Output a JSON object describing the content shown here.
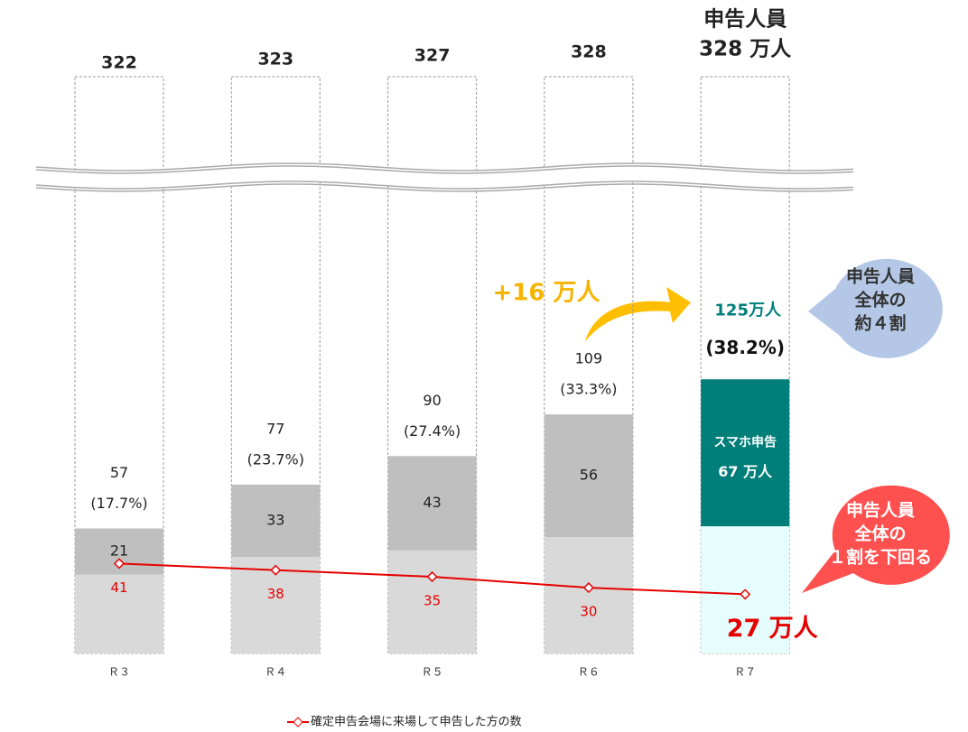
{
  "chart_data": {
    "type": "bar",
    "categories": [
      "Ｒ３",
      "Ｒ４",
      "Ｒ５",
      "Ｒ６",
      "Ｒ７"
    ],
    "totals": {
      "heading": "申告人員",
      "values": [
        322,
        323,
        327,
        328,
        328
      ],
      "value_labels": [
        "322",
        "323",
        "327",
        "328",
        "328 万人"
      ]
    },
    "efile": {
      "values": [
        57,
        77,
        90,
        109,
        125
      ],
      "value_labels": [
        "57",
        "77",
        "90",
        "109",
        "125万人"
      ],
      "shares": [
        17.7,
        23.7,
        27.4,
        33.3,
        38.2
      ],
      "share_labels": [
        "(17.7%)",
        "(23.7%)",
        "(27.4%)",
        "(33.3%)",
        "(38.2%)"
      ]
    },
    "lower": {
      "values": [
        36,
        44,
        47,
        53,
        58
      ],
      "colors": [
        "#d9d9d9",
        "#d9d9d9",
        "#d9d9d9",
        "#d9d9d9",
        "#e5fdfd"
      ]
    },
    "upper": {
      "values": [
        21,
        33,
        43,
        56,
        67
      ],
      "value_labels": [
        "21",
        "33",
        "43",
        "56",
        "67 万人"
      ],
      "name": "スマホ申告",
      "colors": [
        "#bfbfbf",
        "#bfbfbf",
        "#bfbfbf",
        "#bfbfbf",
        "#007f7a"
      ]
    },
    "series": [
      {
        "name": "確定申告会場に来場して申告した方の数",
        "color": "#e60000",
        "values": [
          41,
          38,
          35,
          30,
          27
        ],
        "value_labels": [
          "41",
          "38",
          "35",
          "30",
          "27 万人"
        ]
      }
    ],
    "annotations": {
      "increase": "+16 万人",
      "share_bubble": [
        "申告人員",
        "全体の",
        "約４割"
      ],
      "venue_bubble": [
        "申告人員",
        "全体の",
        "１割を下回る"
      ]
    }
  }
}
